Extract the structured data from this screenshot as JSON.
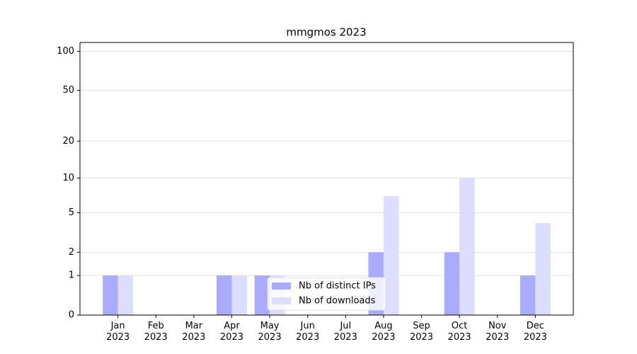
{
  "chart_data": {
    "type": "bar",
    "title": "mmgmos 2023",
    "categories": [
      "Jan\n2023",
      "Feb\n2023",
      "Mar\n2023",
      "Apr\n2023",
      "May\n2023",
      "Jun\n2023",
      "Jul\n2023",
      "Aug\n2023",
      "Sep\n2023",
      "Oct\n2023",
      "Nov\n2023",
      "Dec\n2023"
    ],
    "series": [
      {
        "name": "Nb of distinct IPs",
        "color": "#aaaaff",
        "values": [
          1,
          0,
          0,
          1,
          1,
          0,
          0,
          2,
          0,
          2,
          0,
          1
        ]
      },
      {
        "name": "Nb of downloads",
        "color": "#ddddff",
        "values": [
          1,
          0,
          0,
          1,
          1,
          0,
          0,
          7,
          0,
          10,
          0,
          4
        ]
      }
    ],
    "yscale": "log1p",
    "ylim": [
      0,
      117
    ],
    "yticks": [
      0,
      1,
      2,
      5,
      10,
      20,
      50,
      100
    ],
    "grid": true,
    "legend": "lower center"
  }
}
